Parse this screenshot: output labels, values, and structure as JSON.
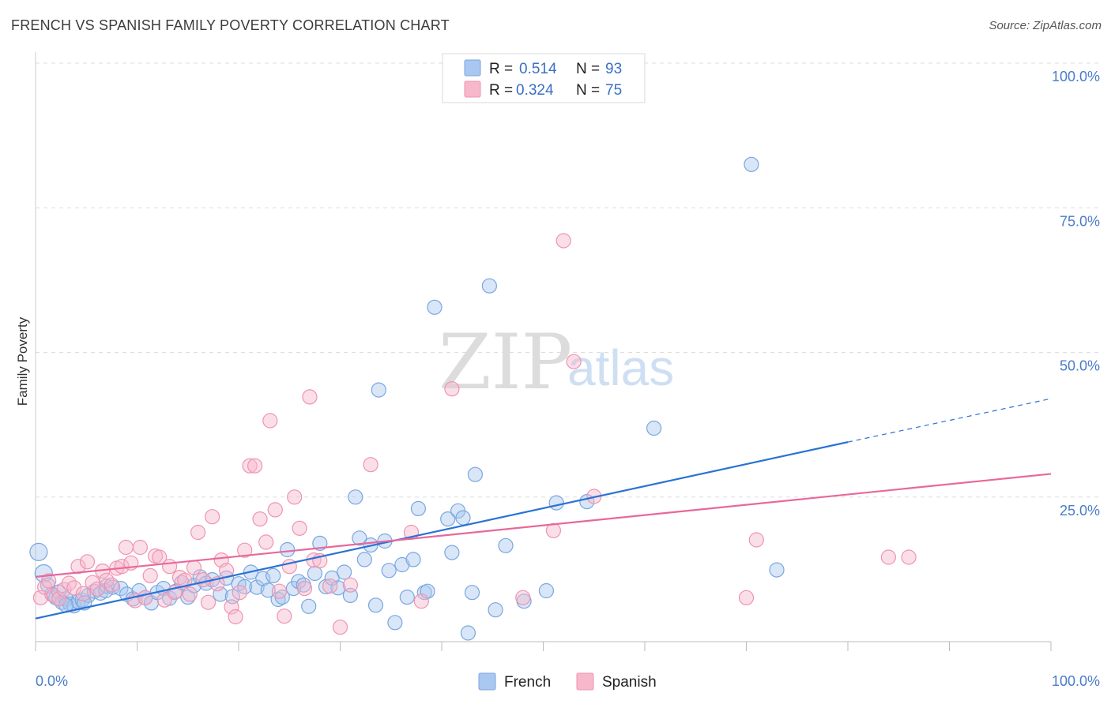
{
  "title": "FRENCH VS SPANISH FAMILY POVERTY CORRELATION CHART",
  "source": "Source: ZipAtlas.com",
  "watermark": {
    "zip": "ZIP",
    "atlas": "atlas"
  },
  "colors": {
    "french_fill": "#a9c7f0",
    "french_stroke": "#7aa6e0",
    "french_line": "#2a72d5",
    "spanish_fill": "#f7b8cc",
    "spanish_stroke": "#ef93b0",
    "spanish_line": "#e7689a",
    "tick_label": "#4a7cc9"
  },
  "legend": {
    "r_label": "R =",
    "n_label": "N =",
    "french": {
      "r": "0.514",
      "n": "93"
    },
    "spanish": {
      "r": "0.324",
      "n": "75"
    }
  },
  "chart_data": {
    "type": "scatter",
    "title": "FRENCH VS SPANISH FAMILY POVERTY CORRELATION CHART",
    "xlabel": "",
    "ylabel": "Family Poverty",
    "xlim": [
      0,
      100
    ],
    "ylim": [
      0,
      100
    ],
    "x_tick_labels": [
      "0.0%",
      "100.0%"
    ],
    "y_tick_labels": [
      "25.0%",
      "50.0%",
      "75.0%",
      "100.0%"
    ],
    "y_ticks": [
      25,
      50,
      75,
      100
    ],
    "grid": true,
    "legend_position": "top-center",
    "series": [
      {
        "name": "French",
        "r": 0.514,
        "n": 93,
        "trend": {
          "x0": 0,
          "y0": 4.0,
          "x1": 80,
          "y1": 34.5,
          "dash_to_x": 100,
          "dash_to_y": 42.0
        },
        "points": [
          [
            0.3,
            15.5
          ],
          [
            0.8,
            11.8
          ],
          [
            1.2,
            9.8
          ],
          [
            1.6,
            8.2
          ],
          [
            2.0,
            7.6
          ],
          [
            2.3,
            8.6
          ],
          [
            2.6,
            6.8
          ],
          [
            3.0,
            7.4
          ],
          [
            3.4,
            6.5
          ],
          [
            3.8,
            6.2
          ],
          [
            4.2,
            6.9
          ],
          [
            4.6,
            7.2
          ],
          [
            5.2,
            8.0
          ],
          [
            5.8,
            8.7
          ],
          [
            6.4,
            8.4
          ],
          [
            7.0,
            9.6
          ],
          [
            7.6,
            9.4
          ],
          [
            8.4,
            9.2
          ],
          [
            9.0,
            8.2
          ],
          [
            9.6,
            7.4
          ],
          [
            10.2,
            8.8
          ],
          [
            10.8,
            7.6
          ],
          [
            11.4,
            6.7
          ],
          [
            12.0,
            8.5
          ],
          [
            12.6,
            9.2
          ],
          [
            13.2,
            7.5
          ],
          [
            13.8,
            8.7
          ],
          [
            14.4,
            10.2
          ],
          [
            15.0,
            7.7
          ],
          [
            15.6,
            9.7
          ],
          [
            16.2,
            11.2
          ],
          [
            16.8,
            10.1
          ],
          [
            17.4,
            10.7
          ],
          [
            18.2,
            8.2
          ],
          [
            18.8,
            11.0
          ],
          [
            19.4,
            7.8
          ],
          [
            20.0,
            10.0
          ],
          [
            20.6,
            9.5
          ],
          [
            21.2,
            12.0
          ],
          [
            21.8,
            9.4
          ],
          [
            22.4,
            10.9
          ],
          [
            22.9,
            8.9
          ],
          [
            23.4,
            11.4
          ],
          [
            23.9,
            7.3
          ],
          [
            24.3,
            7.7
          ],
          [
            24.8,
            15.9
          ],
          [
            25.4,
            9.2
          ],
          [
            25.9,
            10.4
          ],
          [
            26.4,
            9.8
          ],
          [
            26.9,
            6.1
          ],
          [
            27.5,
            11.8
          ],
          [
            28.0,
            17.0
          ],
          [
            28.6,
            9.5
          ],
          [
            29.2,
            11.0
          ],
          [
            29.8,
            9.3
          ],
          [
            30.4,
            12.0
          ],
          [
            31.0,
            8.0
          ],
          [
            31.5,
            25.0
          ],
          [
            31.9,
            17.9
          ],
          [
            32.4,
            14.2
          ],
          [
            33.0,
            16.7
          ],
          [
            33.5,
            6.3
          ],
          [
            33.8,
            43.5
          ],
          [
            34.4,
            17.4
          ],
          [
            34.8,
            12.3
          ],
          [
            35.4,
            3.3
          ],
          [
            36.1,
            13.3
          ],
          [
            36.6,
            7.7
          ],
          [
            37.2,
            14.2
          ],
          [
            37.7,
            23.0
          ],
          [
            38.3,
            8.5
          ],
          [
            38.6,
            8.7
          ],
          [
            39.3,
            57.8
          ],
          [
            40.6,
            21.2
          ],
          [
            41.0,
            15.4
          ],
          [
            41.6,
            22.6
          ],
          [
            42.1,
            21.4
          ],
          [
            42.6,
            1.5
          ],
          [
            43.0,
            8.5
          ],
          [
            43.3,
            28.9
          ],
          [
            44.7,
            61.5
          ],
          [
            45.3,
            5.5
          ],
          [
            46.3,
            16.6
          ],
          [
            48.1,
            7.0
          ],
          [
            50.3,
            8.8
          ],
          [
            51.3,
            24.0
          ],
          [
            54.3,
            24.2
          ],
          [
            60.9,
            36.9
          ],
          [
            70.5,
            82.5
          ],
          [
            73.0,
            12.4
          ],
          [
            3.0,
            6.3
          ],
          [
            4.8,
            6.7
          ],
          [
            6.9,
            8.8
          ]
        ]
      },
      {
        "name": "Spanish",
        "r": 0.324,
        "n": 75,
        "trend": {
          "x0": 0,
          "y0": 11.2,
          "x1": 100,
          "y1": 29.0
        },
        "points": [
          [
            0.5,
            7.6
          ],
          [
            0.9,
            9.4
          ],
          [
            1.3,
            10.5
          ],
          [
            1.8,
            8.0
          ],
          [
            2.3,
            7.4
          ],
          [
            2.8,
            9.0
          ],
          [
            3.3,
            10.1
          ],
          [
            3.8,
            9.3
          ],
          [
            4.2,
            13.0
          ],
          [
            4.7,
            8.3
          ],
          [
            5.1,
            13.8
          ],
          [
            5.6,
            10.2
          ],
          [
            6.1,
            9.1
          ],
          [
            6.6,
            12.2
          ],
          [
            7.0,
            10.6
          ],
          [
            7.5,
            9.8
          ],
          [
            8.0,
            12.7
          ],
          [
            8.5,
            13.0
          ],
          [
            8.9,
            16.3
          ],
          [
            9.4,
            13.6
          ],
          [
            9.8,
            7.1
          ],
          [
            10.3,
            16.3
          ],
          [
            10.8,
            7.6
          ],
          [
            11.3,
            11.4
          ],
          [
            11.8,
            14.8
          ],
          [
            12.2,
            14.6
          ],
          [
            12.7,
            7.2
          ],
          [
            13.2,
            13.0
          ],
          [
            13.7,
            8.5
          ],
          [
            14.2,
            11.1
          ],
          [
            14.7,
            10.6
          ],
          [
            15.2,
            8.2
          ],
          [
            15.6,
            12.8
          ],
          [
            16.0,
            18.9
          ],
          [
            16.5,
            10.7
          ],
          [
            17.0,
            6.8
          ],
          [
            17.4,
            21.6
          ],
          [
            17.9,
            10.0
          ],
          [
            18.3,
            14.1
          ],
          [
            18.8,
            12.3
          ],
          [
            19.3,
            6.0
          ],
          [
            19.7,
            4.3
          ],
          [
            20.1,
            8.5
          ],
          [
            20.6,
            15.8
          ],
          [
            21.1,
            30.4
          ],
          [
            21.6,
            30.4
          ],
          [
            22.1,
            21.2
          ],
          [
            22.7,
            17.2
          ],
          [
            23.1,
            38.2
          ],
          [
            23.6,
            22.8
          ],
          [
            24.0,
            8.7
          ],
          [
            24.5,
            4.4
          ],
          [
            25.0,
            13.0
          ],
          [
            25.5,
            25.0
          ],
          [
            26.0,
            19.6
          ],
          [
            26.5,
            9.2
          ],
          [
            27.0,
            42.3
          ],
          [
            27.4,
            14.1
          ],
          [
            28.0,
            14.0
          ],
          [
            29.0,
            9.6
          ],
          [
            30.0,
            2.5
          ],
          [
            31.0,
            9.8
          ],
          [
            33.0,
            30.6
          ],
          [
            37.0,
            18.9
          ],
          [
            38.0,
            7.0
          ],
          [
            41.0,
            43.7
          ],
          [
            48.0,
            7.6
          ],
          [
            51.0,
            19.2
          ],
          [
            53.0,
            48.4
          ],
          [
            55.0,
            25.1
          ],
          [
            52.0,
            69.3
          ],
          [
            70.0,
            7.6
          ],
          [
            71.0,
            17.6
          ],
          [
            84.0,
            14.6
          ],
          [
            86.0,
            14.6
          ]
        ]
      }
    ]
  }
}
